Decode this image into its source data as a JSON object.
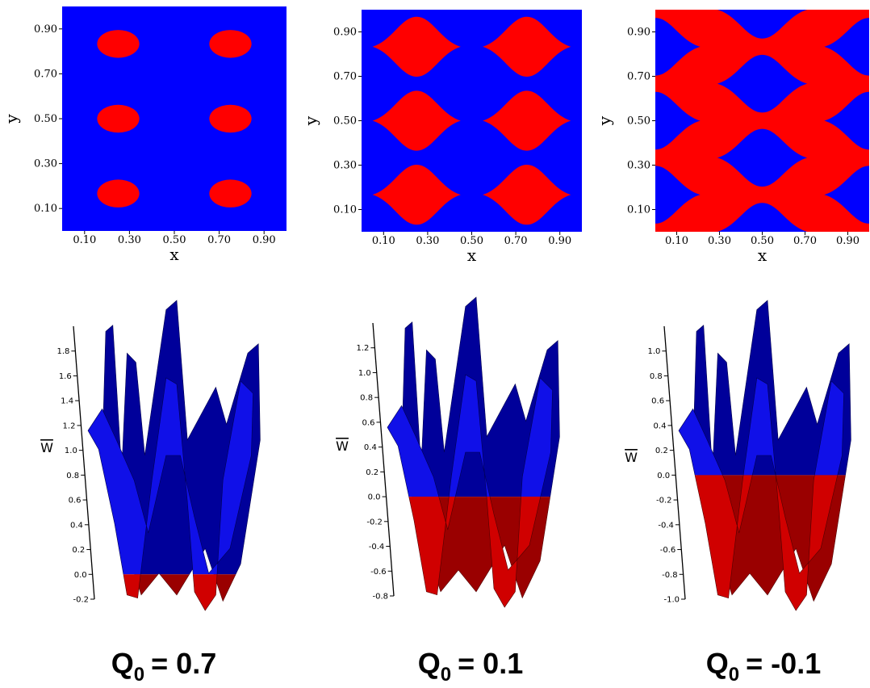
{
  "chart_data": [
    {
      "type": "region-map",
      "xlabel": "x",
      "ylabel": "y",
      "xlim": [
        0,
        1
      ],
      "ylim": [
        0,
        1
      ],
      "xticks": [
        {
          "value": 0.1,
          "label": "0.10"
        },
        {
          "value": 0.3,
          "label": "0.30"
        },
        {
          "value": 0.5,
          "label": "0.50"
        },
        {
          "value": 0.7,
          "label": "0.70"
        },
        {
          "value": 0.9,
          "label": "0.90"
        }
      ],
      "yticks": [
        {
          "value": 0.1,
          "label": "0.10"
        },
        {
          "value": 0.3,
          "label": "0.30"
        },
        {
          "value": 0.5,
          "label": "0.50"
        },
        {
          "value": 0.7,
          "label": "0.70"
        },
        {
          "value": 0.9,
          "label": "0.90"
        }
      ],
      "colors": [
        "#0000ff",
        "#ff0000"
      ]
    },
    {
      "type": "region-map",
      "xlabel": "x",
      "ylabel": "y",
      "xlim": [
        0,
        1
      ],
      "ylim": [
        0,
        1
      ],
      "xticks": [
        {
          "value": 0.1,
          "label": "0.10"
        },
        {
          "value": 0.3,
          "label": "0.30"
        },
        {
          "value": 0.5,
          "label": "0.50"
        },
        {
          "value": 0.7,
          "label": "0.70"
        },
        {
          "value": 0.9,
          "label": "0.90"
        }
      ],
      "yticks": [
        {
          "value": 0.1,
          "label": "0.10"
        },
        {
          "value": 0.3,
          "label": "0.30"
        },
        {
          "value": 0.5,
          "label": "0.50"
        },
        {
          "value": 0.7,
          "label": "0.70"
        },
        {
          "value": 0.9,
          "label": "0.90"
        }
      ],
      "colors": [
        "#0000ff",
        "#ff0000"
      ]
    },
    {
      "type": "region-map",
      "xlabel": "x",
      "ylabel": "y",
      "xlim": [
        0,
        1
      ],
      "ylim": [
        0,
        1
      ],
      "xticks": [
        {
          "value": 0.1,
          "label": "0.10"
        },
        {
          "value": 0.3,
          "label": "0.30"
        },
        {
          "value": 0.5,
          "label": "0.50"
        },
        {
          "value": 0.7,
          "label": "0.70"
        },
        {
          "value": 0.9,
          "label": "0.90"
        }
      ],
      "yticks": [
        {
          "value": 0.1,
          "label": "0.10"
        },
        {
          "value": 0.3,
          "label": "0.30"
        },
        {
          "value": 0.5,
          "label": "0.50"
        },
        {
          "value": 0.7,
          "label": "0.70"
        },
        {
          "value": 0.9,
          "label": "0.90"
        }
      ],
      "colors": [
        "#0000ff",
        "#ff0000"
      ]
    },
    {
      "type": "surface",
      "zlabel": "W",
      "zlim": [
        -0.2,
        2.0
      ],
      "zticks": [
        -0.2,
        {
          "value": 0,
          "label": "0.0"
        },
        0.2,
        0.4,
        0.6,
        0.8,
        {
          "value": 1,
          "label": "1.0"
        },
        1.2,
        1.4,
        1.6,
        1.8
      ],
      "colors": [
        "#0000ff",
        "#ff0000"
      ]
    },
    {
      "type": "surface",
      "zlabel": "W",
      "zlim": [
        -0.8,
        1.4
      ],
      "zticks": [
        -0.8,
        -0.6,
        -0.4,
        -0.2,
        {
          "value": 0,
          "label": "0.0"
        },
        0.2,
        0.4,
        0.6,
        0.8,
        {
          "value": 1,
          "label": "1.0"
        },
        1.2
      ],
      "colors": [
        "#0000ff",
        "#ff0000"
      ]
    },
    {
      "type": "surface",
      "zlabel": "W",
      "zlim": [
        -1.0,
        1.2
      ],
      "zticks": [
        {
          "value": -1,
          "label": "-1.0"
        },
        -0.8,
        -0.6,
        -0.4,
        -0.2,
        {
          "value": 0,
          "label": "0.0"
        },
        0.2,
        0.4,
        0.6,
        0.8,
        {
          "value": 1,
          "label": "1.0"
        }
      ],
      "colors": [
        "#0000ff",
        "#ff0000"
      ]
    }
  ],
  "captions": [
    {
      "symbol": "Q",
      "subscript": "0",
      "text": "= 0.7"
    },
    {
      "symbol": "Q",
      "subscript": "0",
      "text": "= 0.1"
    },
    {
      "symbol": "Q",
      "subscript": "0",
      "text": "= -0.1"
    }
  ]
}
